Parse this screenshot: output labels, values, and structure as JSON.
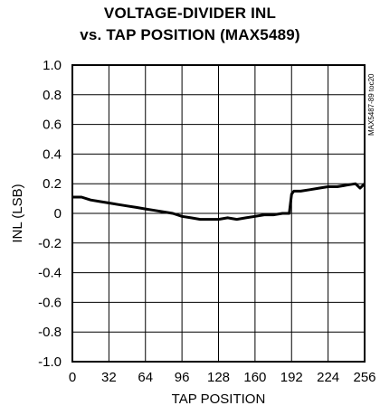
{
  "chart_data": {
    "type": "line",
    "title_lines": [
      "VOLTAGE-DIVIDER INL",
      "vs. TAP POSITION (MAX5489)"
    ],
    "xlabel": "TAP POSITION",
    "ylabel": "INL (LSB)",
    "xlim": [
      0,
      256
    ],
    "ylim": [
      -1.0,
      1.0
    ],
    "x_ticks": [
      0,
      32,
      64,
      96,
      128,
      160,
      192,
      224,
      256
    ],
    "x_tick_labels": [
      "0",
      "32",
      "64",
      "96",
      "128",
      "160",
      "192",
      "224",
      "256"
    ],
    "y_ticks": [
      1.0,
      0.8,
      0.6,
      0.4,
      0.2,
      0,
      -0.2,
      -0.4,
      -0.6,
      -0.8,
      -1.0
    ],
    "y_tick_labels": [
      "1.0",
      "0.8",
      "0.6",
      "0.4",
      "0.2",
      "0",
      "-0.2",
      "-0.4",
      "-0.6",
      "-0.8",
      "-1.0"
    ],
    "grid": true,
    "figure_code": "MAX5487-89 toc20",
    "series": [
      {
        "color": "#000000",
        "x": [
          0,
          8,
          16,
          24,
          32,
          40,
          48,
          56,
          64,
          72,
          80,
          88,
          96,
          104,
          112,
          120,
          128,
          136,
          144,
          152,
          160,
          168,
          176,
          184,
          190,
          192,
          194,
          200,
          208,
          216,
          224,
          232,
          240,
          248,
          252,
          256
        ],
        "y": [
          0.11,
          0.11,
          0.09,
          0.08,
          0.07,
          0.06,
          0.05,
          0.04,
          0.03,
          0.02,
          0.01,
          0.0,
          -0.02,
          -0.03,
          -0.04,
          -0.04,
          -0.04,
          -0.03,
          -0.04,
          -0.03,
          -0.02,
          -0.01,
          -0.01,
          0.0,
          0.0,
          0.13,
          0.15,
          0.15,
          0.16,
          0.17,
          0.18,
          0.18,
          0.19,
          0.2,
          0.17,
          0.2
        ]
      }
    ]
  }
}
